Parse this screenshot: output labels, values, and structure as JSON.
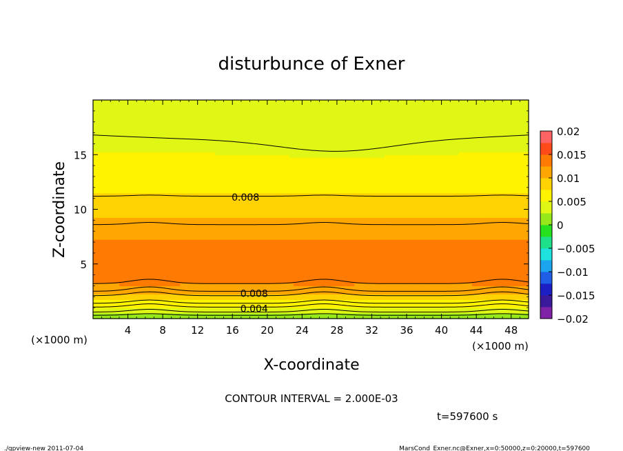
{
  "chart_data": {
    "type": "heatmap",
    "title": "disturbunce of Exner",
    "xlabel": "X-coordinate",
    "ylabel": "Z-coordinate",
    "x_unit": "(×1000 m)",
    "y_unit": "(×1000 m)",
    "xlim": [
      0,
      50
    ],
    "ylim": [
      0,
      20
    ],
    "x_ticks": [
      4,
      8,
      12,
      16,
      20,
      24,
      28,
      32,
      36,
      40,
      44,
      48
    ],
    "x_tick_labels": [
      "4",
      "8",
      "12",
      "16",
      "20",
      "24",
      "28",
      "32",
      "36",
      "40",
      "44",
      "48"
    ],
    "y_ticks": [
      5,
      10,
      15
    ],
    "y_tick_labels": [
      "5",
      "10",
      "15"
    ],
    "contour_interval_text": "CONTOUR INTERVAL = 2.000E-03",
    "time_text": "t=597600 s",
    "colorbar": {
      "min": -0.02,
      "max": 0.02,
      "step": 0.0025,
      "tick_values": [
        0.02,
        0.015,
        0.01,
        0.005,
        0,
        -0.005,
        -0.01,
        -0.015,
        -0.02
      ],
      "tick_labels": [
        "0.02",
        "0.015",
        "0.01",
        "0.005",
        "0",
        "−0.005",
        "−0.01",
        "−0.015",
        "−0.02"
      ],
      "colors": [
        "#7f22a8",
        "#3a1a9a",
        "#1c1fc4",
        "#1f5fe6",
        "#1ca5ee",
        "#1ee2de",
        "#1ee08a",
        "#26e21e",
        "#96e81a",
        "#e0f614",
        "#fff300",
        "#ffd200",
        "#ffa600",
        "#ff7a00",
        "#ff4a1a",
        "#ff6464"
      ]
    },
    "field_profile": {
      "z": [
        0,
        0.5,
        1.0,
        1.5,
        2.0,
        2.5,
        3.0,
        3.5,
        4.0,
        4.5,
        5.0,
        5.5,
        6.0,
        6.5,
        7.0,
        7.5,
        8.0,
        8.5,
        9.0,
        9.5,
        10.0,
        10.5,
        11.0,
        11.5,
        12.0,
        12.5,
        13.0,
        13.5,
        14.0,
        14.5,
        15.0,
        15.5,
        16.0,
        16.5,
        17.0,
        17.5,
        18.0,
        18.5,
        19.0,
        19.5,
        20.0
      ],
      "value": [
        0.0005,
        0.0025,
        0.0045,
        0.0065,
        0.0085,
        0.0105,
        0.0122,
        0.0128,
        0.013,
        0.0131,
        0.0131,
        0.0131,
        0.0131,
        0.013,
        0.0128,
        0.0122,
        0.0118,
        0.0112,
        0.0105,
        0.0098,
        0.009,
        0.0083,
        0.008,
        0.0075,
        0.0071,
        0.0067,
        0.0063,
        0.006,
        0.0057,
        0.0054,
        0.0051,
        0.0048,
        0.0046,
        0.0043,
        0.0041,
        0.0039,
        0.0037,
        0.0035,
        0.0033,
        0.0031,
        0.003
      ]
    },
    "field_variation": {
      "x_bumps": [
        6.5,
        26.5,
        47
      ],
      "x_dip": 28
    },
    "contours": [
      {
        "z": 0.3,
        "amp": 0.15
      },
      {
        "z": 0.6,
        "amp": 0.25
      },
      {
        "z": 1.05,
        "amp": 0.3
      },
      {
        "z": 1.4,
        "amp": 0.3
      },
      {
        "z": 2.1,
        "amp": 0.35
      },
      {
        "z": 2.5,
        "amp": 0.4
      },
      {
        "z": 3.2,
        "amp": 0.4
      },
      {
        "z": 8.6,
        "amp": 0.2
      },
      {
        "z": 11.2,
        "amp": 0.1
      },
      {
        "z": 16.3,
        "amp": -1.0
      }
    ],
    "contour_labels": [
      {
        "text": "0.004",
        "x": 18.5,
        "z": 0.9
      },
      {
        "text": "0.008",
        "x": 18.5,
        "z": 2.3
      },
      {
        "text": "0.008",
        "x": 17.5,
        "z": 11.1
      }
    ]
  },
  "footer": {
    "left": "./gpview-new   2011-07-04",
    "right": "MarsCond_Exner.nc@Exner,x=0:50000,z=0:20000,t=597600"
  }
}
